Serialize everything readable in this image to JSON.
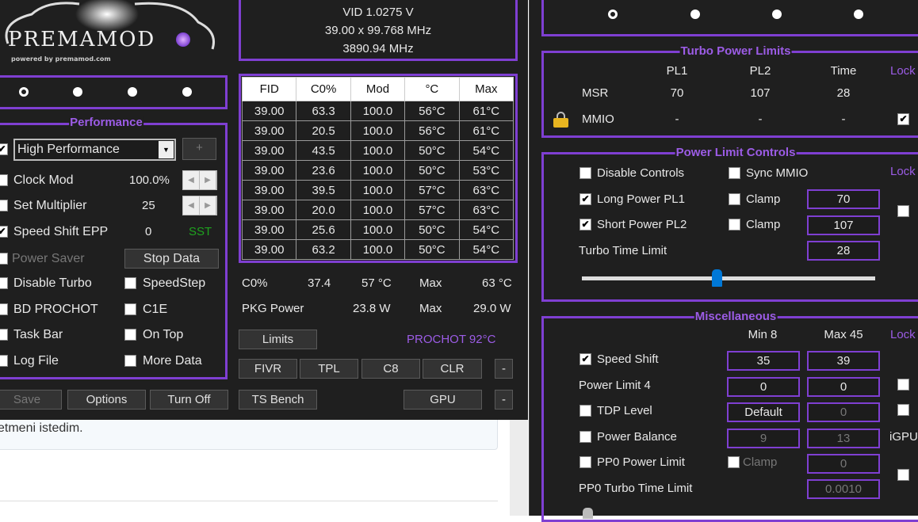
{
  "background_page": {
    "text": "etmeni istedim."
  },
  "logo": {
    "text": "PREMAMOD",
    "tagline": "powered by premamod.com"
  },
  "main": {
    "vid": "VID  1.0275 V",
    "multiplier": "39.00 x 99.768 MHz",
    "frequency": "3890.94 MHz",
    "profiles": [
      "profile-1",
      "profile-2",
      "profile-3",
      "profile-4"
    ],
    "selected_profile": 0,
    "performance": {
      "title": "Performance",
      "power_plan": "High Performance",
      "plus": "+",
      "clock_mod": {
        "label": "Clock Mod",
        "value": "100.0%",
        "checked": false
      },
      "set_multiplier": {
        "label": "Set Multiplier",
        "value": "25",
        "checked": false
      },
      "speed_shift_epp": {
        "label": "Speed Shift EPP",
        "value": "0",
        "badge": "SST",
        "checked": true
      },
      "power_saver": {
        "label": "Power Saver",
        "checked": false
      },
      "stop_data": "Stop Data",
      "left_options": [
        {
          "label": "Disable Turbo",
          "checked": false
        },
        {
          "label": "BD PROCHOT",
          "checked": false
        },
        {
          "label": "Task Bar",
          "checked": false
        },
        {
          "label": "Log File",
          "checked": false
        }
      ],
      "right_options": [
        {
          "label": "SpeedStep",
          "checked": false
        },
        {
          "label": "C1E",
          "checked": false
        },
        {
          "label": "On Top",
          "checked": false
        },
        {
          "label": "More Data",
          "checked": false
        }
      ]
    },
    "table": {
      "headers": [
        "FID",
        "C0%",
        "Mod",
        "°C",
        "Max"
      ],
      "rows": [
        [
          "39.00",
          "63.3",
          "100.0",
          "56°C",
          "61°C"
        ],
        [
          "39.00",
          "20.5",
          "100.0",
          "56°C",
          "61°C"
        ],
        [
          "39.00",
          "43.5",
          "100.0",
          "50°C",
          "54°C"
        ],
        [
          "39.00",
          "23.6",
          "100.0",
          "50°C",
          "53°C"
        ],
        [
          "39.00",
          "39.5",
          "100.0",
          "57°C",
          "63°C"
        ],
        [
          "39.00",
          "20.0",
          "100.0",
          "57°C",
          "63°C"
        ],
        [
          "39.00",
          "25.6",
          "100.0",
          "50°C",
          "54°C"
        ],
        [
          "39.00",
          "63.2",
          "100.0",
          "50°C",
          "54°C"
        ]
      ]
    },
    "stats": {
      "c0_label": "C0%",
      "c0_value": "37.4",
      "temp": "57 °C",
      "max_label": "Max",
      "temp_max": "63 °C",
      "pkg_label": "PKG Power",
      "pkg_value": "23.8 W",
      "pkg_max": "29.0 W"
    },
    "prochot": "PROCHOT 92°C",
    "buttons": {
      "limits": "Limits",
      "fivr": "FIVR",
      "tpl": "TPL",
      "c8": "C8",
      "clr": "CLR",
      "dash": "-",
      "ts_bench": "TS Bench",
      "gpu": "GPU",
      "save": "Save",
      "options": "Options",
      "turn_off": "Turn Off"
    }
  },
  "tpl": {
    "profiles": [
      "profile-1",
      "profile-2",
      "profile-3",
      "profile-4"
    ],
    "selected_profile": 0,
    "turbo": {
      "title": "Turbo Power Limits",
      "headers": [
        "PL1",
        "PL2",
        "Time",
        "Lock"
      ],
      "msr": {
        "label": "MSR",
        "values": [
          "70",
          "107",
          "28"
        ]
      },
      "mmio": {
        "label": "MMIO",
        "values": [
          "-",
          "-",
          "-"
        ],
        "lock_checked": true
      }
    },
    "plc": {
      "title": "Power Limit Controls",
      "disable_controls": "Disable Controls",
      "sync_mmio": "Sync MMIO",
      "lock": "Lock",
      "long_power": "Long Power PL1",
      "short_power": "Short Power PL2",
      "clamp": "Clamp",
      "pl1": "70",
      "pl2": "107",
      "turbo_time_label": "Turbo Time Limit",
      "turbo_time": "28",
      "slider_fraction": 0.46
    },
    "misc": {
      "title": "Miscellaneous",
      "min": "Min  8",
      "max": "Max  45",
      "lock": "Lock",
      "speed_shift": {
        "label": "Speed Shift",
        "min": "35",
        "max": "39",
        "checked": true
      },
      "power_limit4": {
        "label": "Power Limit 4",
        "min": "0",
        "max": "0"
      },
      "tdp_level": {
        "label": "TDP Level",
        "min": "Default",
        "max": "0"
      },
      "power_balance": {
        "label": "Power Balance",
        "min": "9",
        "max": "13"
      },
      "igpu": "iGPU",
      "pp0_power": {
        "label": "PP0 Power Limit",
        "clamp": "Clamp",
        "value": "0"
      },
      "pp0_time": {
        "label": "PP0 Turbo Time Limit",
        "value": "0.0010"
      }
    },
    "colors": {
      "accent": "#7f3fd2",
      "title": "#9c5ce6",
      "sst": "#1fa31f",
      "slider": "#0078d7"
    }
  }
}
